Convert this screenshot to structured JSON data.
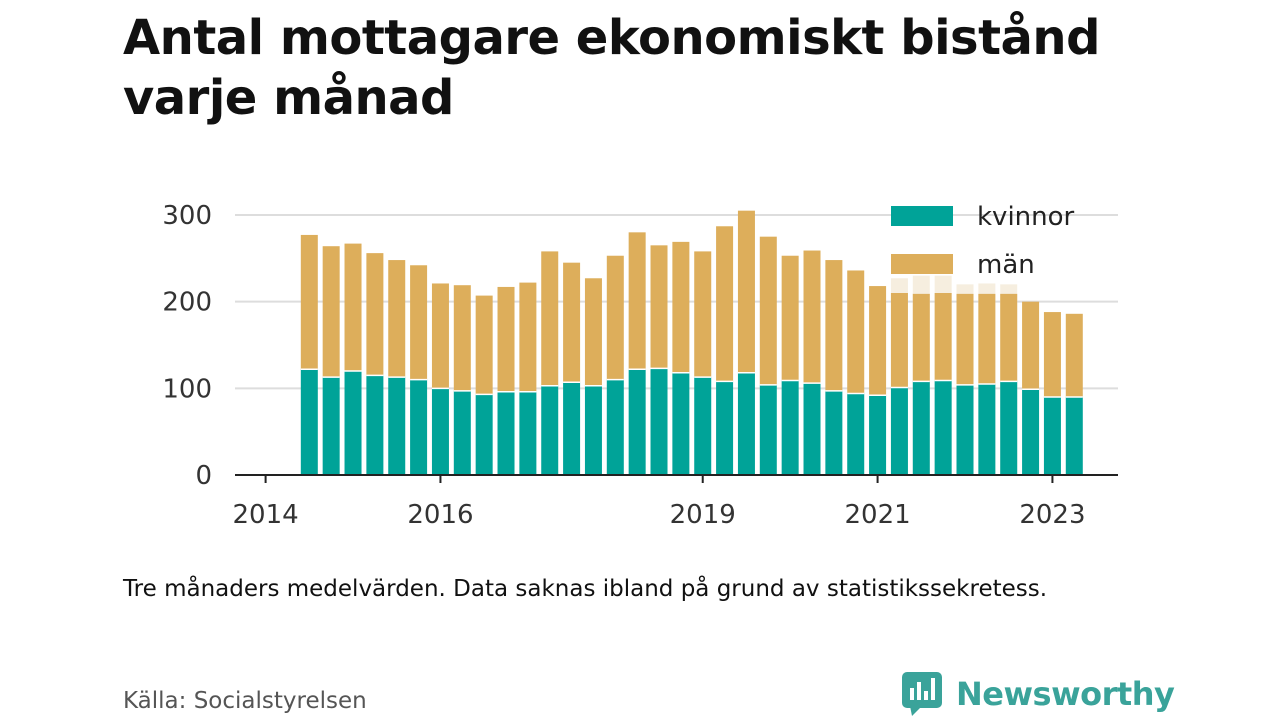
{
  "title": "Antal mottagare ekonomiskt bistånd varje månad",
  "note": "Tre månaders medelvärden. Data saknas ibland på grund av statistikssekretess.",
  "source": "Källa: Socialstyrelsen",
  "brand": {
    "name": "Newsworthy",
    "color": "#3aa39a"
  },
  "colors": {
    "kvinnor": "#00a398",
    "man": "#ddae5b",
    "missing": "#f6eedf",
    "grid": "#dddddd",
    "axis": "#222222"
  },
  "chart_data": {
    "type": "bar",
    "stacked": true,
    "x_ticks": [
      "2014",
      "2016",
      "2019",
      "2021",
      "2023"
    ],
    "x_tick_positions": [
      2014.0,
      2016.0,
      2019.0,
      2021.0,
      2023.0
    ],
    "xlim": [
      2013.65,
      2023.75
    ],
    "ylim": [
      0,
      300
    ],
    "y_ticks": [
      0,
      100,
      200,
      300
    ],
    "grid": true,
    "legend": {
      "position": "top-right",
      "entries": [
        {
          "key": "kvinnor",
          "label": "kvinnor"
        },
        {
          "key": "man",
          "label": "män"
        }
      ]
    },
    "x": [
      2014.5,
      2014.75,
      2015.0,
      2015.25,
      2015.5,
      2015.75,
      2016.0,
      2016.25,
      2016.5,
      2016.75,
      2017.0,
      2017.25,
      2017.5,
      2017.75,
      2018.0,
      2018.25,
      2018.5,
      2018.75,
      2019.0,
      2019.25,
      2019.5,
      2019.75,
      2020.0,
      2020.25,
      2020.5,
      2020.75,
      2021.0,
      2021.25,
      2021.5,
      2021.75,
      2022.0,
      2022.25,
      2022.5,
      2022.75,
      2023.0,
      2023.25
    ],
    "series": [
      {
        "name": "kvinnor",
        "values": [
          122,
          113,
          120,
          115,
          113,
          110,
          100,
          97,
          93,
          96,
          96,
          103,
          107,
          103,
          110,
          122,
          123,
          118,
          113,
          108,
          118,
          104,
          109,
          106,
          97,
          94,
          92,
          101,
          108,
          109,
          104,
          105,
          108,
          99,
          90,
          90
        ]
      },
      {
        "name": "män",
        "values": [
          155,
          151,
          147,
          141,
          135,
          132,
          121,
          122,
          114,
          121,
          126,
          155,
          138,
          124,
          143,
          158,
          142,
          151,
          145,
          179,
          187,
          171,
          144,
          153,
          151,
          142,
          126,
          109,
          101,
          101,
          105,
          104,
          101,
          101,
          98,
          96
        ]
      }
    ],
    "missing_overlay": [
      0,
      0,
      0,
      0,
      0,
      0,
      0,
      0,
      0,
      0,
      0,
      0,
      0,
      0,
      0,
      0,
      0,
      0,
      0,
      0,
      0,
      0,
      0,
      0,
      0,
      0,
      0,
      227,
      230,
      230,
      220,
      221,
      220,
      0,
      0,
      0
    ]
  }
}
